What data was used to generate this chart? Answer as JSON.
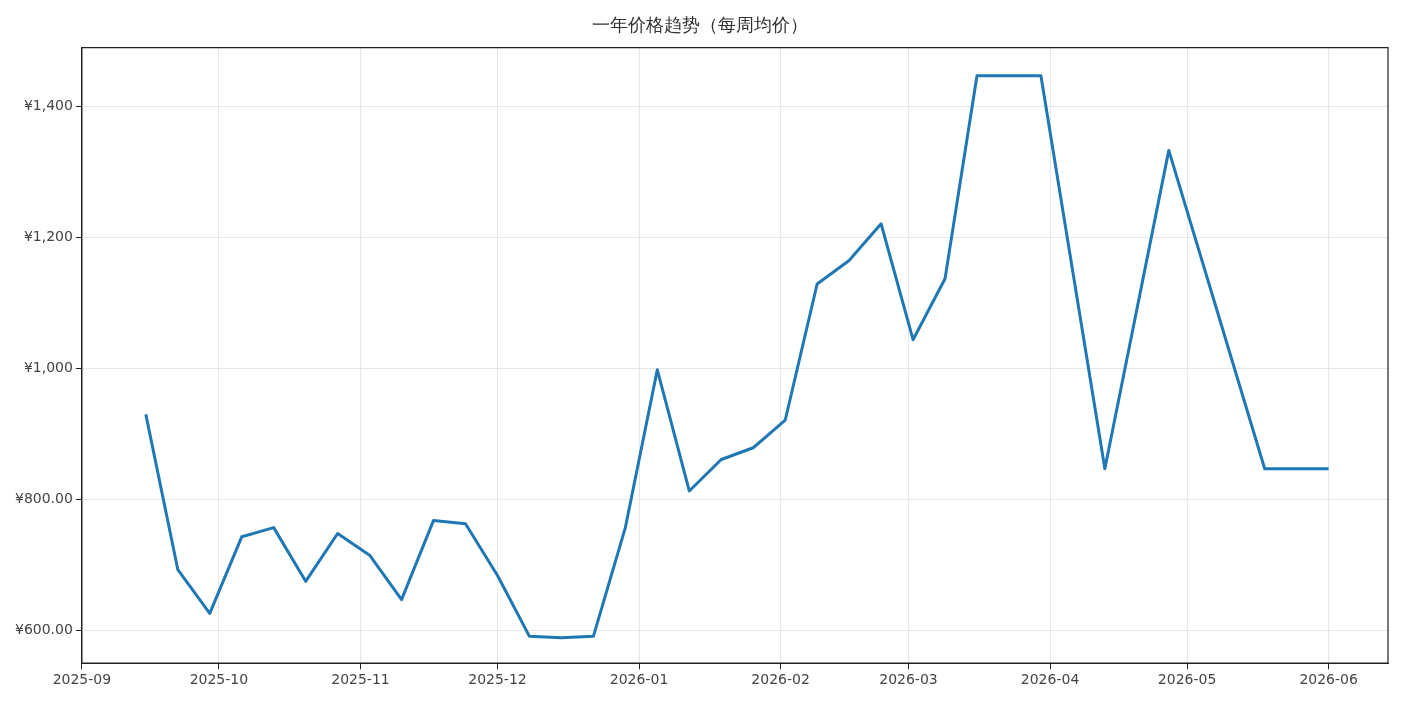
{
  "chart_data": {
    "type": "line",
    "title": "一年价格趋势（每周均价）",
    "color": "#1f77b4",
    "x": [
      "2025-09-15",
      "2025-09-22",
      "2025-09-29",
      "2025-10-06",
      "2025-10-13",
      "2025-10-20",
      "2025-10-27",
      "2025-11-03",
      "2025-11-10",
      "2025-11-17",
      "2025-11-24",
      "2025-12-01",
      "2025-12-08",
      "2025-12-15",
      "2025-12-22",
      "2025-12-29",
      "2026-01-05",
      "2026-01-12",
      "2026-01-19",
      "2026-01-26",
      "2026-02-02",
      "2026-02-09",
      "2026-02-16",
      "2026-02-23",
      "2026-03-02",
      "2026-03-09",
      "2026-03-16",
      "2026-03-23",
      "2026-03-30",
      "2026-04-13",
      "2026-04-27",
      "2026-05-18",
      "2026-05-25",
      "2026-06-01"
    ],
    "values": [
      930,
      693,
      626,
      743,
      757,
      675,
      748,
      715,
      647,
      768,
      763,
      684,
      591,
      589,
      591,
      757,
      998,
      813,
      861,
      879,
      921,
      1129,
      1165,
      1221,
      1044,
      1137,
      1447,
      1447,
      1447,
      847,
      1333,
      847,
      847,
      847
    ],
    "xlim": [
      "2025-09-01",
      "2026-06-14"
    ],
    "xticks": [
      {
        "value": "2025-09-01",
        "label": "2025-09"
      },
      {
        "value": "2025-10-01",
        "label": "2025-10"
      },
      {
        "value": "2025-11-01",
        "label": "2025-11"
      },
      {
        "value": "2025-12-01",
        "label": "2025-12"
      },
      {
        "value": "2026-01-01",
        "label": "2026-01"
      },
      {
        "value": "2026-02-01",
        "label": "2026-02"
      },
      {
        "value": "2026-03-01",
        "label": "2026-03"
      },
      {
        "value": "2026-04-01",
        "label": "2026-04"
      },
      {
        "value": "2026-05-01",
        "label": "2026-05"
      },
      {
        "value": "2026-06-01",
        "label": "2026-06"
      }
    ],
    "ylim": [
      550,
      1490
    ],
    "yticks": [
      {
        "value": 600,
        "label": "¥600.00"
      },
      {
        "value": 800,
        "label": "¥800.00"
      },
      {
        "value": 1000,
        "label": "¥1,000"
      },
      {
        "value": 1200,
        "label": "¥1,200"
      },
      {
        "value": 1400,
        "label": "¥1,400"
      }
    ],
    "grid": true,
    "legend": false,
    "marker": "none",
    "line_style": "solid"
  }
}
